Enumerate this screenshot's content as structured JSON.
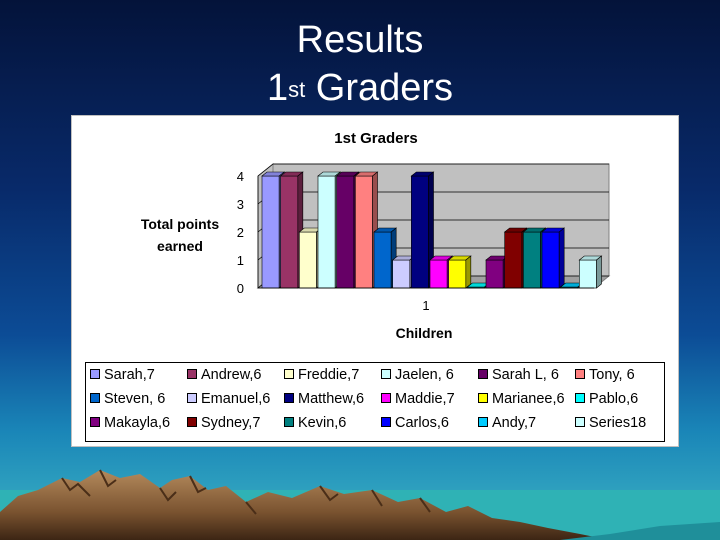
{
  "slide": {
    "title_line1": "Results",
    "title_line2_number": "1",
    "title_line2_suffix": "st",
    "title_line2_rest": "Graders"
  },
  "chart_data": {
    "type": "bar",
    "title": "1st Graders",
    "xlabel": "Children",
    "ylabel_line1": "Total points",
    "ylabel_line2": "earned",
    "categories": [
      "1"
    ],
    "ylim": [
      0,
      4
    ],
    "yticks": [
      "0",
      "1",
      "2",
      "3",
      "4"
    ],
    "grid": true,
    "legend_position": "bottom",
    "series": [
      {
        "name": "Sarah,7",
        "values": [
          4
        ],
        "color": "#9999ff"
      },
      {
        "name": "Andrew,6",
        "values": [
          4
        ],
        "color": "#993366"
      },
      {
        "name": "Freddie,7",
        "values": [
          2
        ],
        "color": "#ffffcc"
      },
      {
        "name": "Jaelen, 6",
        "values": [
          4
        ],
        "color": "#ccffff"
      },
      {
        "name": "Sarah L, 6",
        "values": [
          4
        ],
        "color": "#660066"
      },
      {
        "name": "Tony, 6",
        "values": [
          4
        ],
        "color": "#ff8080"
      },
      {
        "name": "Steven, 6",
        "values": [
          2
        ],
        "color": "#0066cc"
      },
      {
        "name": "Emanuel,6",
        "values": [
          1
        ],
        "color": "#ccccff"
      },
      {
        "name": "Matthew,6",
        "values": [
          4
        ],
        "color": "#000080"
      },
      {
        "name": "Maddie,7",
        "values": [
          1
        ],
        "color": "#ff00ff"
      },
      {
        "name": "Marianee,6",
        "values": [
          1
        ],
        "color": "#ffff00"
      },
      {
        "name": "Pablo,6",
        "values": [
          0
        ],
        "color": "#00ffff"
      },
      {
        "name": "Makayla,6",
        "values": [
          1
        ],
        "color": "#800080"
      },
      {
        "name": "Sydney,7",
        "values": [
          2
        ],
        "color": "#800000"
      },
      {
        "name": "Kevin,6",
        "values": [
          2
        ],
        "color": "#008080"
      },
      {
        "name": "Carlos,6",
        "values": [
          2
        ],
        "color": "#0000ff"
      },
      {
        "name": "Andy,7",
        "values": [
          0
        ],
        "color": "#00ccff"
      },
      {
        "name": "Series18",
        "values": [
          1
        ],
        "color": "#ccffff"
      }
    ]
  }
}
